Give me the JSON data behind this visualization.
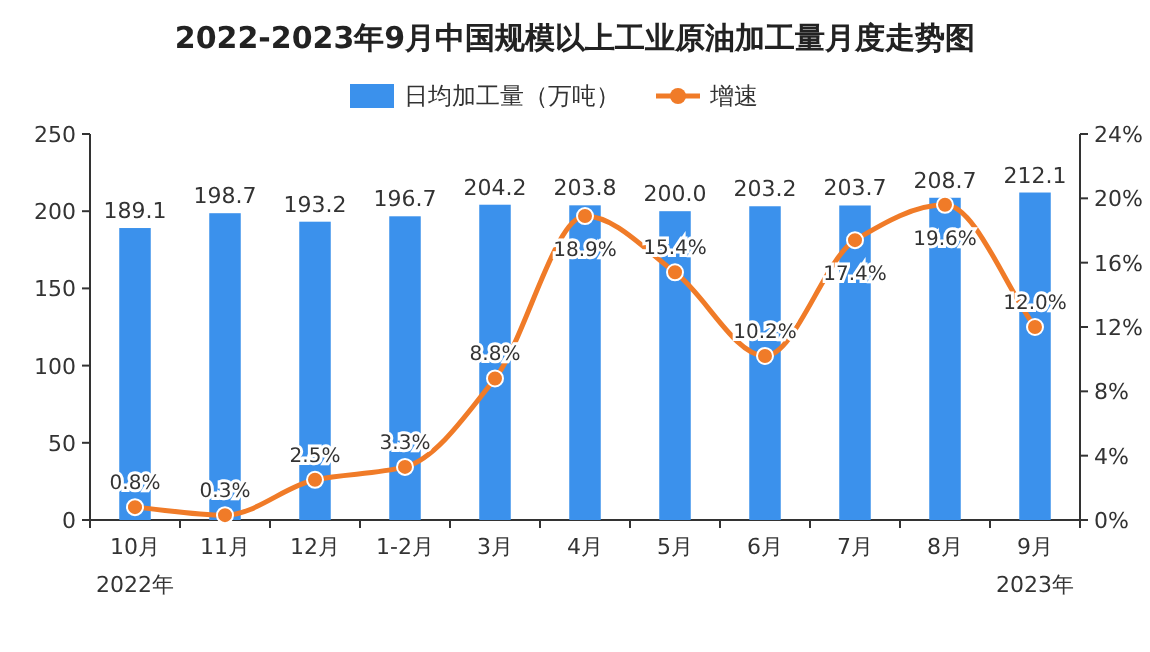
{
  "chart_data": {
    "type": "bar",
    "title": "2022-2023年9月中国规模以上工业原油加工量月度走势图",
    "categories": [
      "10月",
      "11月",
      "12月",
      "1-2月",
      "3月",
      "4月",
      "5月",
      "6月",
      "7月",
      "8月",
      "9月"
    ],
    "series": [
      {
        "name": "日均加工量（万吨）",
        "color": "#3b91ec",
        "values": [
          189.1,
          198.7,
          193.2,
          196.7,
          204.2,
          203.8,
          200.0,
          203.2,
          203.7,
          208.7,
          212.1
        ],
        "value_labels": [
          "189.1",
          "198.7",
          "193.2",
          "196.7",
          "204.2",
          "203.8",
          "200.0",
          "203.2",
          "203.7",
          "208.7",
          "212.1"
        ]
      },
      {
        "name": "增速",
        "type": "line",
        "axis": "y2",
        "color": "#f07b28",
        "marker": "circle",
        "values": [
          0.8,
          0.3,
          2.5,
          3.3,
          8.8,
          18.9,
          15.4,
          10.2,
          17.4,
          19.6,
          12.0
        ],
        "value_labels": [
          "0.8%",
          "0.3%",
          "2.5%",
          "3.3%",
          "8.8%",
          "18.9%",
          "15.4%",
          "10.2%",
          "17.4%",
          "19.6%",
          "12.0%"
        ]
      }
    ],
    "ylim": [
      0,
      250
    ],
    "yticks": [
      0,
      50,
      100,
      150,
      200,
      250
    ],
    "y2lim": [
      0,
      24
    ],
    "y2ticks": [
      {
        "value": 0,
        "label": "0%"
      },
      {
        "value": 4,
        "label": "4%"
      },
      {
        "value": 8,
        "label": "8%"
      },
      {
        "value": 12,
        "label": "12%"
      },
      {
        "value": 16,
        "label": "16%"
      },
      {
        "value": 20,
        "label": "20%"
      },
      {
        "value": 24,
        "label": "24%"
      }
    ],
    "legend": "top",
    "grid": false,
    "annotations": [
      "2022年",
      "2023年"
    ]
  }
}
